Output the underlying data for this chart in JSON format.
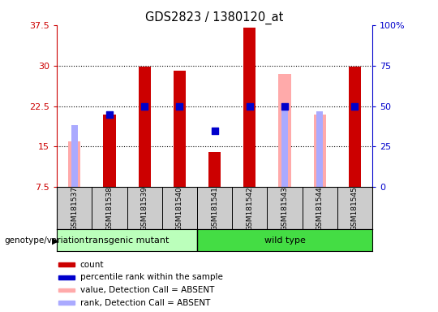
{
  "title": "GDS2823 / 1380120_at",
  "samples": [
    "GSM181537",
    "GSM181538",
    "GSM181539",
    "GSM181540",
    "GSM181541",
    "GSM181542",
    "GSM181543",
    "GSM181544",
    "GSM181545"
  ],
  "count_values": [
    null,
    21.0,
    29.8,
    29.0,
    14.0,
    37.0,
    null,
    null,
    29.8
  ],
  "percentile_values": [
    null,
    21.0,
    22.5,
    22.5,
    18.0,
    22.5,
    22.5,
    null,
    22.5
  ],
  "absent_value_values": [
    16.0,
    null,
    null,
    null,
    null,
    null,
    28.5,
    21.0,
    null
  ],
  "absent_rank_values": [
    19.0,
    null,
    null,
    null,
    null,
    null,
    22.5,
    21.5,
    null
  ],
  "ylim_left": [
    7.5,
    37.5
  ],
  "ylim_right": [
    0,
    100
  ],
  "yticks_left": [
    7.5,
    15.0,
    22.5,
    30.0,
    37.5
  ],
  "yticks_right": [
    0,
    25,
    50,
    75,
    100
  ],
  "ytick_labels_left": [
    "7.5",
    "15",
    "22.5",
    "30",
    "37.5"
  ],
  "ytick_labels_right": [
    "0",
    "25",
    "50",
    "75",
    "100%"
  ],
  "bar_color": "#cc0000",
  "percentile_color": "#0000cc",
  "absent_value_color": "#ffaaaa",
  "absent_rank_color": "#aaaaff",
  "group1_label": "transgenic mutant",
  "group2_label": "wild type",
  "group1_color": "#bbffbb",
  "group2_color": "#44dd44",
  "group1_samples": [
    0,
    1,
    2,
    3
  ],
  "group2_samples": [
    4,
    5,
    6,
    7,
    8
  ],
  "genotype_label": "genotype/variation",
  "legend_items": [
    {
      "label": "count",
      "color": "#cc0000"
    },
    {
      "label": "percentile rank within the sample",
      "color": "#0000cc"
    },
    {
      "label": "value, Detection Call = ABSENT",
      "color": "#ffaaaa"
    },
    {
      "label": "rank, Detection Call = ABSENT",
      "color": "#aaaaff"
    }
  ],
  "bar_width": 0.35,
  "dot_size": 35,
  "axis_color_left": "#cc0000",
  "axis_color_right": "#0000cc",
  "grid_yticks": [
    15.0,
    22.5,
    30.0
  ]
}
